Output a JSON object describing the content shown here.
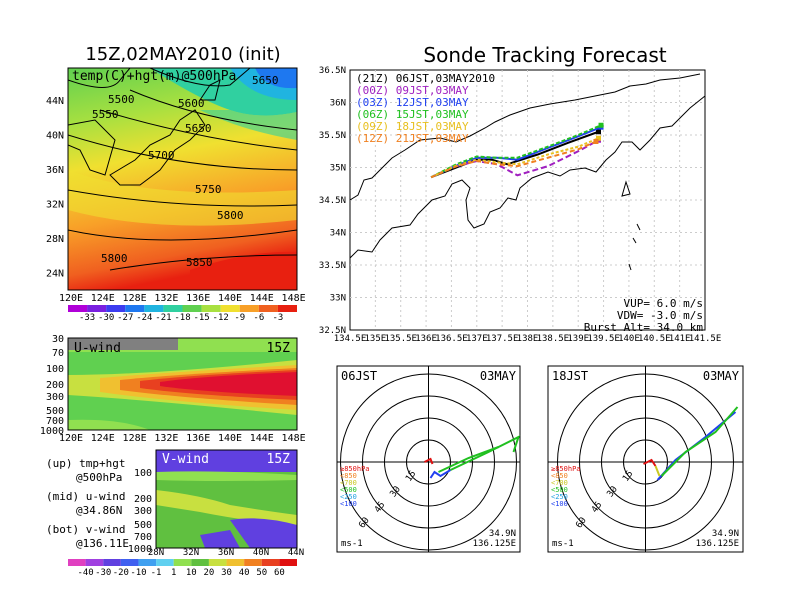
{
  "left_title": "15Z,02MAY2010 (init)",
  "main_title": "Sonde Tracking Forecast",
  "upper_map": {
    "label": "temp(C)+hgt(m)@500hPa",
    "x_ticks": [
      "120E",
      "124E",
      "128E",
      "132E",
      "136E",
      "140E",
      "144E",
      "148E"
    ],
    "y_ticks": [
      "44N",
      "40N",
      "36N",
      "32N",
      "28N",
      "24N"
    ],
    "contour_labels": [
      "5500",
      "5550",
      "5600",
      "5650",
      "5650",
      "5700",
      "5750",
      "5800",
      "5800",
      "5850"
    ],
    "colorbar_labels": [
      "-33",
      "-30",
      "-27",
      "-24",
      "-21",
      "-18",
      "-15",
      "-12",
      "-9",
      "-6",
      "-3"
    ],
    "colorbar_colors": [
      "#b000d8",
      "#7a20e0",
      "#3c3cf0",
      "#1e78f0",
      "#20b4e0",
      "#30d0a0",
      "#60d050",
      "#a8e040",
      "#f0e030",
      "#f8a028",
      "#f06020",
      "#e82010"
    ]
  },
  "uwind": {
    "label": "U-wind",
    "time": "15Z",
    "y_ticks": [
      "30",
      "70",
      "100",
      "200",
      "300",
      "500",
      "700",
      "1000"
    ],
    "x_ticks": [
      "120E",
      "124E",
      "128E",
      "132E",
      "136E",
      "140E",
      "144E",
      "148E"
    ]
  },
  "vwind": {
    "label": "V-wind",
    "time": "15Z",
    "y_ticks": [
      "100",
      "200",
      "300",
      "500",
      "700",
      "1000"
    ],
    "x_ticks": [
      "28N",
      "32N",
      "36N",
      "40N",
      "44N"
    ],
    "colorbar_labels": [
      "-40",
      "-30",
      "-20",
      "-10",
      "-1",
      "1",
      "10",
      "20",
      "30",
      "40",
      "50",
      "60"
    ],
    "colorbar_colors": [
      "#e040c0",
      "#a040e0",
      "#6040e0",
      "#4060f0",
      "#40a0f0",
      "#60d0f0",
      "#90e050",
      "#60c040",
      "#c8e040",
      "#f0c030",
      "#f08020",
      "#e84020",
      "#e01010"
    ]
  },
  "side_notes": [
    "(up) tmp+hgt",
    "@500hPa",
    "(mid) u-wind",
    "@34.86N",
    "(bot) v-wind",
    "@136.11E"
  ],
  "tracking": {
    "x_ticks": [
      "134.5E",
      "135E",
      "135.5E",
      "136E",
      "136.5E",
      "137E",
      "137.5E",
      "138E",
      "138.5E",
      "139E",
      "139.5E",
      "140E",
      "140.5E",
      "141E",
      "141.5E"
    ],
    "y_ticks": [
      "36.5N",
      "36N",
      "35.5N",
      "35N",
      "34.5N",
      "34N",
      "33.5N",
      "33N",
      "32.5N"
    ],
    "legend": [
      {
        "text": "(21Z) 06JST,03MAY2010",
        "color": "#000000"
      },
      {
        "text": "(00Z) 09JST,03MAY",
        "color": "#a020c0"
      },
      {
        "text": "(03Z) 12JST,03MAY",
        "color": "#2040f0"
      },
      {
        "text": "(06Z) 15JST,03MAY",
        "color": "#20c020"
      },
      {
        "text": "(09Z) 18JST,03MAY",
        "color": "#e8c020"
      },
      {
        "text": "(12Z) 21JST,03MAY",
        "color": "#f08020"
      }
    ],
    "params": [
      "VUP=  6.0 m/s",
      "VDW= -3.0 m/s",
      "Burst Alt= 34.0 km"
    ]
  },
  "hodo_left": {
    "time": "06JST",
    "date": "03MAY",
    "lat": "34.9N",
    "lon": "136.125E",
    "unit": "ms-1"
  },
  "hodo_right": {
    "time": "18JST",
    "date": "03MAY",
    "lat": "34.9N",
    "lon": "136.125E",
    "unit": "ms-1"
  },
  "hodo_rings": [
    "15",
    "30",
    "45",
    "60"
  ],
  "hodo_levels": [
    {
      "text": "≥850hPa",
      "color": "#e01010"
    },
    {
      "text": "<850",
      "color": "#f08020"
    },
    {
      "text": "<700",
      "color": "#c8c820"
    },
    {
      "text": "<500",
      "color": "#20c020"
    },
    {
      "text": "<250",
      "color": "#20a0e0"
    },
    {
      "text": "<100",
      "color": "#2040f0"
    }
  ],
  "chart_data": [
    {
      "type": "line",
      "title": "Sonde Tracking Forecast",
      "xlabel": "",
      "ylabel": "",
      "xlim": [
        134.5,
        141.5
      ],
      "ylim": [
        32.5,
        36.5
      ],
      "series": [
        {
          "name": "(21Z) 06JST,03MAY2010",
          "x": [
            136.1,
            136.6,
            137.0,
            137.3,
            137.6,
            138.2,
            138.8,
            139.4
          ],
          "y": [
            34.85,
            35.0,
            35.12,
            35.12,
            35.05,
            35.2,
            35.38,
            35.55
          ]
        },
        {
          "name": "(00Z) 09JST,03MAY",
          "x": [
            136.1,
            136.5,
            137.0,
            137.4,
            137.8,
            138.4,
            139.0,
            139.4
          ],
          "y": [
            34.85,
            35.0,
            35.1,
            35.05,
            34.88,
            35.02,
            35.25,
            35.42
          ]
        },
        {
          "name": "(03Z) 12JST,03MAY",
          "x": [
            136.1,
            136.6,
            137.0,
            137.4,
            137.8,
            138.4,
            139.0,
            139.45
          ],
          "y": [
            34.85,
            35.03,
            35.15,
            35.15,
            35.12,
            35.3,
            35.48,
            35.62
          ]
        },
        {
          "name": "(06Z) 15JST,03MAY",
          "x": [
            136.1,
            136.6,
            137.0,
            137.4,
            137.8,
            138.4,
            139.0,
            139.45
          ],
          "y": [
            34.85,
            35.05,
            35.17,
            35.15,
            35.15,
            35.32,
            35.5,
            35.65
          ]
        },
        {
          "name": "(09Z) 18JST,03MAY",
          "x": [
            136.1,
            136.6,
            137.0,
            137.4,
            137.8,
            138.4,
            139.0,
            139.4
          ],
          "y": [
            34.85,
            35.03,
            35.12,
            35.08,
            35.05,
            35.2,
            35.32,
            35.45
          ]
        },
        {
          "name": "(12Z) 21JST,03MAY",
          "x": [
            136.1,
            136.6,
            137.0,
            137.4,
            137.8,
            138.4,
            139.0,
            139.35
          ],
          "y": [
            34.85,
            35.02,
            35.1,
            35.05,
            35.02,
            35.15,
            35.28,
            35.4
          ]
        }
      ]
    }
  ]
}
